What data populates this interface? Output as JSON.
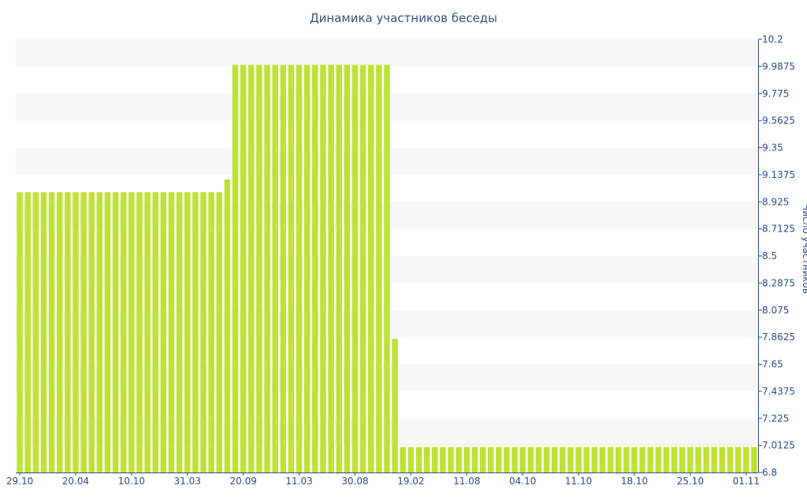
{
  "chart_data": {
    "type": "bar",
    "title": "Динамика участников беседы",
    "ylabel": "Число участников",
    "xlabel": "",
    "ylim": [
      6.8,
      10.2
    ],
    "y_ticks": [
      "6.8",
      "7.0125",
      "7.225",
      "7.4375",
      "7.65",
      "7.8625",
      "8.075",
      "8.2875",
      "8.5",
      "8.7125",
      "8.925",
      "9.1375",
      "9.35",
      "9.5625",
      "9.775",
      "9.9875",
      "10.2"
    ],
    "x_tick_labels": [
      "29.10",
      "20.04",
      "10.10",
      "31.03",
      "20.09",
      "11.03",
      "30.08",
      "19.02",
      "11.08",
      "04.10",
      "11.10",
      "18.10",
      "25.10",
      "01.11"
    ],
    "grid": "horizontal alternating bands",
    "bar_color": "#bfe234",
    "values": [
      9,
      9,
      9,
      9,
      9,
      9,
      9,
      9,
      9,
      9,
      9,
      9,
      9,
      9,
      9,
      9,
      9,
      9,
      9,
      9,
      9,
      9,
      9,
      9,
      9,
      9,
      9.1,
      10,
      10,
      10,
      10,
      10,
      10,
      10,
      10,
      10,
      10,
      10,
      10,
      10,
      10,
      10,
      10,
      10,
      10,
      10,
      10,
      7.85,
      7,
      7,
      7,
      7,
      7,
      7,
      7,
      7,
      7,
      7,
      7,
      7,
      7,
      7,
      7,
      7,
      7,
      7,
      7,
      7,
      7,
      7,
      7,
      7,
      7,
      7,
      7,
      7,
      7,
      7,
      7,
      7,
      7,
      7,
      7,
      7,
      7,
      7,
      7,
      7,
      7,
      7,
      7,
      7,
      7
    ]
  }
}
